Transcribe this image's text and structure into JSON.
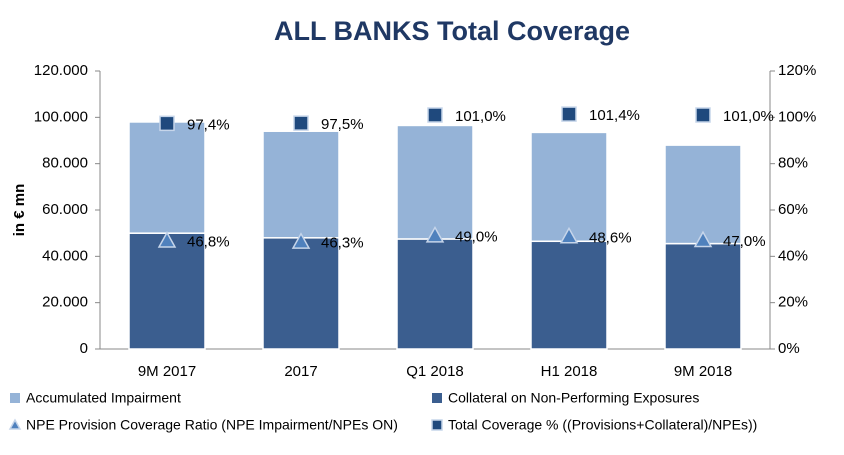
{
  "chart_data": {
    "type": "bar",
    "title": "ALL BANKS Total Coverage",
    "y_label": "in € mn",
    "categories": [
      "9M 2017",
      "2017",
      "Q1 2018",
      "H1 2018",
      "9M 2018"
    ],
    "series": [
      {
        "name": "Collateral on Non-Performing Exposures",
        "color": "#3b5e8f",
        "values": [
          50000,
          48000,
          47500,
          46500,
          45500
        ]
      },
      {
        "name": "Accumulated Impairment",
        "color": "#95b3d7",
        "values": [
          48000,
          46000,
          49000,
          47000,
          42500
        ]
      },
      {
        "name": "NPE Provision Coverage Ratio (NPE Impairment/NPEs ON)",
        "color": "#4f81bd",
        "axis": "y2",
        "marker": "triangle",
        "values": [
          46.8,
          46.3,
          49.0,
          48.6,
          47.0
        ],
        "value_labels": [
          "46,8%",
          "46,3%",
          "49,0%",
          "48,6%",
          "47,0%"
        ]
      },
      {
        "name": "Total Coverage % ((Provisions+Collateral)/NPEs))",
        "color": "#1f497d",
        "axis": "y2",
        "marker": "square",
        "values": [
          97.4,
          97.5,
          101.0,
          101.4,
          101.0
        ],
        "value_labels": [
          "97,4%",
          "97,5%",
          "101,0%",
          "101,4%",
          "101,0%"
        ]
      }
    ],
    "legend_order": [
      1,
      0,
      2,
      3
    ],
    "ylim": [
      0,
      120000
    ],
    "yticks": [
      0,
      {
        "value": 20000,
        "label": "20.000"
      },
      {
        "value": 40000,
        "label": "40.000"
      },
      {
        "value": 60000,
        "label": "60.000"
      },
      {
        "value": 80000,
        "label": "80.000"
      },
      {
        "value": 100000,
        "label": "100.000"
      },
      {
        "value": 120000,
        "label": "120.000"
      }
    ],
    "y2lim": [
      0,
      120
    ],
    "y2ticks": [
      {
        "value": 0,
        "label": "0%"
      },
      {
        "value": 20,
        "label": "20%"
      },
      {
        "value": 40,
        "label": "40%"
      },
      {
        "value": 60,
        "label": "60%"
      },
      {
        "value": 80,
        "label": "80%"
      },
      {
        "value": 100,
        "label": "100%"
      },
      {
        "value": 120,
        "label": "120%"
      }
    ],
    "grid": false
  }
}
